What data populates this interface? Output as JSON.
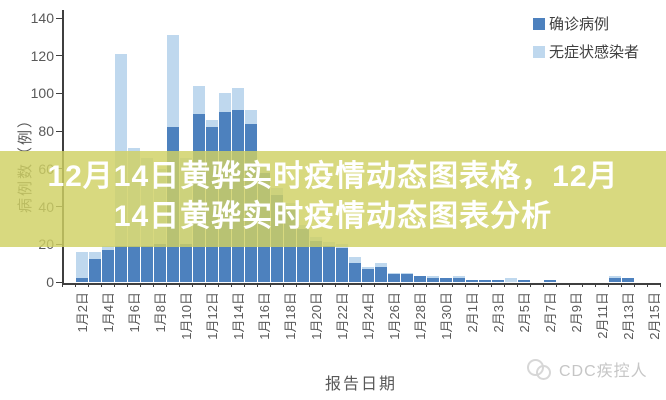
{
  "chart_data": {
    "type": "bar",
    "subtype": "stacked-vertical",
    "title": "",
    "xlabel": "报告日期",
    "ylabel": "病例数（例）",
    "ylim": [
      0,
      140
    ],
    "yticks": [
      0,
      20,
      40,
      60,
      80,
      100,
      120,
      140
    ],
    "grid": "off",
    "legend_position": "top-right",
    "x_label_rotation": -90,
    "x_label_every": 2,
    "x_label_start_index": 1,
    "categories": [
      "1月1日",
      "1月2日",
      "1月3日",
      "1月4日",
      "1月5日",
      "1月6日",
      "1月7日",
      "1月8日",
      "1月9日",
      "1月10日",
      "1月11日",
      "1月12日",
      "1月13日",
      "1月14日",
      "1月15日",
      "1月16日",
      "1月17日",
      "1月18日",
      "1月19日",
      "1月20日",
      "1月21日",
      "1月22日",
      "1月23日",
      "1月24日",
      "1月25日",
      "1月26日",
      "1月27日",
      "1月28日",
      "1月29日",
      "1月30日",
      "1月31日",
      "2月1日",
      "2月2日",
      "2月3日",
      "2月4日",
      "2月5日",
      "2月6日",
      "2月7日",
      "2月8日",
      "2月9日",
      "2月10日",
      "2月11日",
      "2月12日",
      "2月13日",
      "2月14日",
      "2月15日"
    ],
    "series": [
      {
        "name": "确诊病例",
        "color": "#4d81be",
        "values": [
          0,
          2,
          12,
          17,
          19,
          19,
          19,
          20,
          82,
          20,
          89,
          82,
          90,
          91,
          84,
          58,
          46,
          38,
          28,
          22,
          19,
          18,
          10,
          7,
          8,
          4,
          4,
          3,
          2,
          2,
          2,
          1,
          1,
          1,
          0,
          1,
          0,
          1,
          0,
          0,
          0,
          0,
          2,
          2,
          0,
          0
        ]
      },
      {
        "name": "无症状感染者",
        "color": "#bfd8ee",
        "values": [
          0,
          14,
          4,
          2,
          102,
          52,
          47,
          40,
          49,
          46,
          15,
          4,
          10,
          12,
          7,
          4,
          4,
          4,
          2,
          2,
          2,
          2,
          3,
          1,
          2,
          1,
          1,
          0,
          1,
          0,
          1,
          0,
          0,
          0,
          2,
          0,
          0,
          0,
          0,
          0,
          0,
          0,
          1,
          0,
          0,
          0
        ]
      }
    ]
  },
  "overlay": {
    "line1": "12月14日黄骅实时疫情动态图表格，12月",
    "line2": "14日黄骅实时疫情动态图表分析",
    "band_color": "#cfd163",
    "text_color": "#ffffff"
  },
  "watermark": {
    "text": "CDC疾控人"
  },
  "colors": {
    "axis": "#3f3f3f",
    "tick_label": "#595959",
    "legend_text": "#404040",
    "background": "#ffffff"
  }
}
